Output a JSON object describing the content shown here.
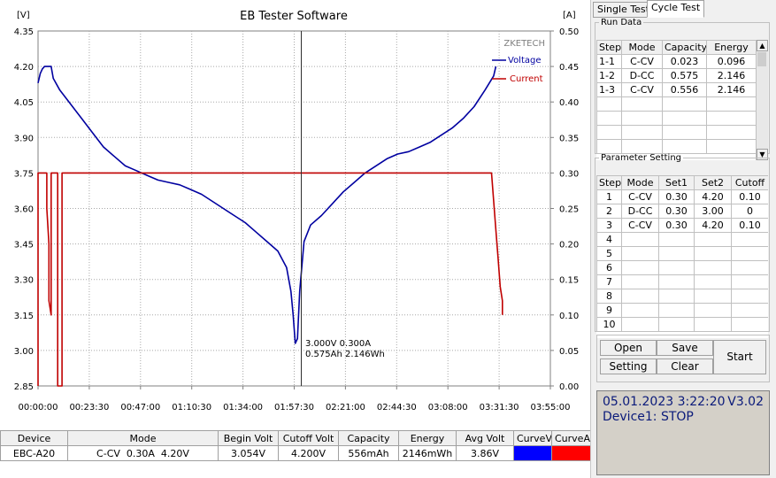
{
  "window": {
    "title": "EB Tester Software"
  },
  "chart": {
    "left_unit": "[V]",
    "right_unit": "[A]",
    "watermark": "ZKETECH",
    "legend": [
      {
        "name": "Voltage",
        "color": "#0000a0"
      },
      {
        "name": "Current",
        "color": "#c00000"
      }
    ],
    "cursor_readout": {
      "line1": "3.000V  0.300A",
      "line2": "0.575Ah 2.146Wh"
    }
  },
  "chart_data": {
    "type": "line",
    "title": "EB Tester Software",
    "xlabel": "",
    "x_ticks": [
      "00:00:00",
      "00:23:30",
      "00:47:00",
      "01:10:30",
      "01:34:00",
      "01:57:30",
      "02:21:00",
      "02:44:30",
      "03:08:00",
      "03:31:30",
      "03:55:00"
    ],
    "y_left_ticks": [
      "4.35",
      "4.20",
      "4.05",
      "3.90",
      "3.75",
      "3.60",
      "3.45",
      "3.30",
      "3.15",
      "3.00",
      "2.85"
    ],
    "y_right_ticks": [
      "0.50",
      "0.45",
      "0.40",
      "0.35",
      "0.30",
      "0.25",
      "0.20",
      "0.15",
      "0.10",
      "0.05",
      "0.00"
    ],
    "x_range_minutes": [
      0,
      235
    ],
    "ylim_left": [
      2.85,
      4.35
    ],
    "ylim_right": [
      0,
      0.5
    ],
    "grid": true,
    "legend_position": "top-right",
    "series": [
      {
        "name": "Voltage",
        "axis": "left",
        "color": "#0000a0",
        "x_minutes": [
          0,
          1,
          2,
          3,
          4,
          5,
          6,
          7,
          10,
          15,
          20,
          25,
          30,
          35,
          40,
          45,
          50,
          55,
          60,
          65,
          70,
          75,
          80,
          85,
          90,
          95,
          100,
          105,
          110,
          114,
          116,
          117,
          118,
          119,
          120,
          122,
          125,
          130,
          135,
          140,
          145,
          150,
          155,
          160,
          165,
          170,
          175,
          180,
          185,
          190,
          195,
          200,
          205,
          209,
          210
        ],
        "values": [
          4.13,
          4.17,
          4.19,
          4.2,
          4.2,
          4.2,
          4.2,
          4.15,
          4.1,
          4.04,
          3.98,
          3.92,
          3.86,
          3.82,
          3.78,
          3.76,
          3.74,
          3.72,
          3.71,
          3.7,
          3.68,
          3.66,
          3.63,
          3.6,
          3.57,
          3.54,
          3.5,
          3.46,
          3.42,
          3.35,
          3.25,
          3.15,
          3.03,
          3.05,
          3.25,
          3.46,
          3.53,
          3.57,
          3.62,
          3.67,
          3.71,
          3.75,
          3.78,
          3.81,
          3.83,
          3.84,
          3.86,
          3.88,
          3.91,
          3.94,
          3.98,
          4.03,
          4.1,
          4.16,
          4.2
        ]
      },
      {
        "name": "Current",
        "axis": "right",
        "color": "#c00000",
        "x_minutes": [
          0,
          0,
          4,
          4,
          5,
          5,
          5,
          6,
          6,
          9,
          9,
          9,
          11,
          11,
          12,
          12,
          13,
          13,
          208,
          208,
          210,
          211,
          212,
          213,
          213
        ],
        "values": [
          0.0,
          0.3,
          0.3,
          0.25,
          0.2,
          0.15,
          0.12,
          0.1,
          0.3,
          0.3,
          0.25,
          0.0,
          0.0,
          0.3,
          0.3,
          0.3,
          0.3,
          0.3,
          0.3,
          0.3,
          0.22,
          0.18,
          0.14,
          0.12,
          0.1
        ]
      }
    ]
  },
  "summary_table": {
    "headers": [
      "Device",
      "Mode",
      "Begin Volt",
      "Cutoff Volt",
      "Capacity",
      "Energy",
      "Avg Volt",
      "CurveV",
      "CurveA"
    ],
    "row": {
      "device": "EBC-A20",
      "mode": "C-CV  0.30A  4.20V",
      "begin_volt": "3.054V",
      "cutoff_volt": "4.200V",
      "capacity": "556mAh",
      "energy": "2146mWh",
      "avg_volt": "3.86V",
      "curve_v_color": "#0000ff",
      "curve_a_color": "#ff0000"
    }
  },
  "tabs": [
    {
      "label": "Single Test",
      "active": false
    },
    {
      "label": "Cycle Test",
      "active": true
    }
  ],
  "run_data": {
    "title": "Run Data",
    "headers": [
      "Step",
      "Mode",
      "Capacity",
      "Energy"
    ],
    "rows": [
      [
        "1-1",
        "C-CV",
        "0.023",
        "0.096"
      ],
      [
        "1-2",
        "D-CC",
        "0.575",
        "2.146"
      ],
      [
        "1-3",
        "C-CV",
        "0.556",
        "2.146"
      ]
    ]
  },
  "parameter_setting": {
    "title": "Parameter Setting",
    "headers": [
      "Step",
      "Mode",
      "Set1",
      "Set2",
      "Cutoff"
    ],
    "rows": [
      [
        "1",
        "C-CV",
        "0.30",
        "4.20",
        "0.10"
      ],
      [
        "2",
        "D-CC",
        "0.30",
        "3.00",
        "0"
      ],
      [
        "3",
        "C-CV",
        "0.30",
        "4.20",
        "0.10"
      ],
      [
        "4",
        "",
        "",
        "",
        ""
      ],
      [
        "5",
        "",
        "",
        "",
        ""
      ],
      [
        "6",
        "",
        "",
        "",
        ""
      ],
      [
        "7",
        "",
        "",
        "",
        ""
      ],
      [
        "8",
        "",
        "",
        "",
        ""
      ],
      [
        "9",
        "",
        "",
        "",
        ""
      ],
      [
        "10",
        "",
        "",
        "",
        ""
      ]
    ]
  },
  "buttons": {
    "open": "Open",
    "save": "Save",
    "setting": "Setting",
    "clear": "Clear",
    "start": "Start"
  },
  "status": {
    "datetime": "05.01.2023 3:22:20",
    "version": "V3.02",
    "device": "Device1: STOP"
  },
  "icons": {
    "scroll_up": "arrow-up-icon",
    "scroll_down": "arrow-down-icon"
  }
}
